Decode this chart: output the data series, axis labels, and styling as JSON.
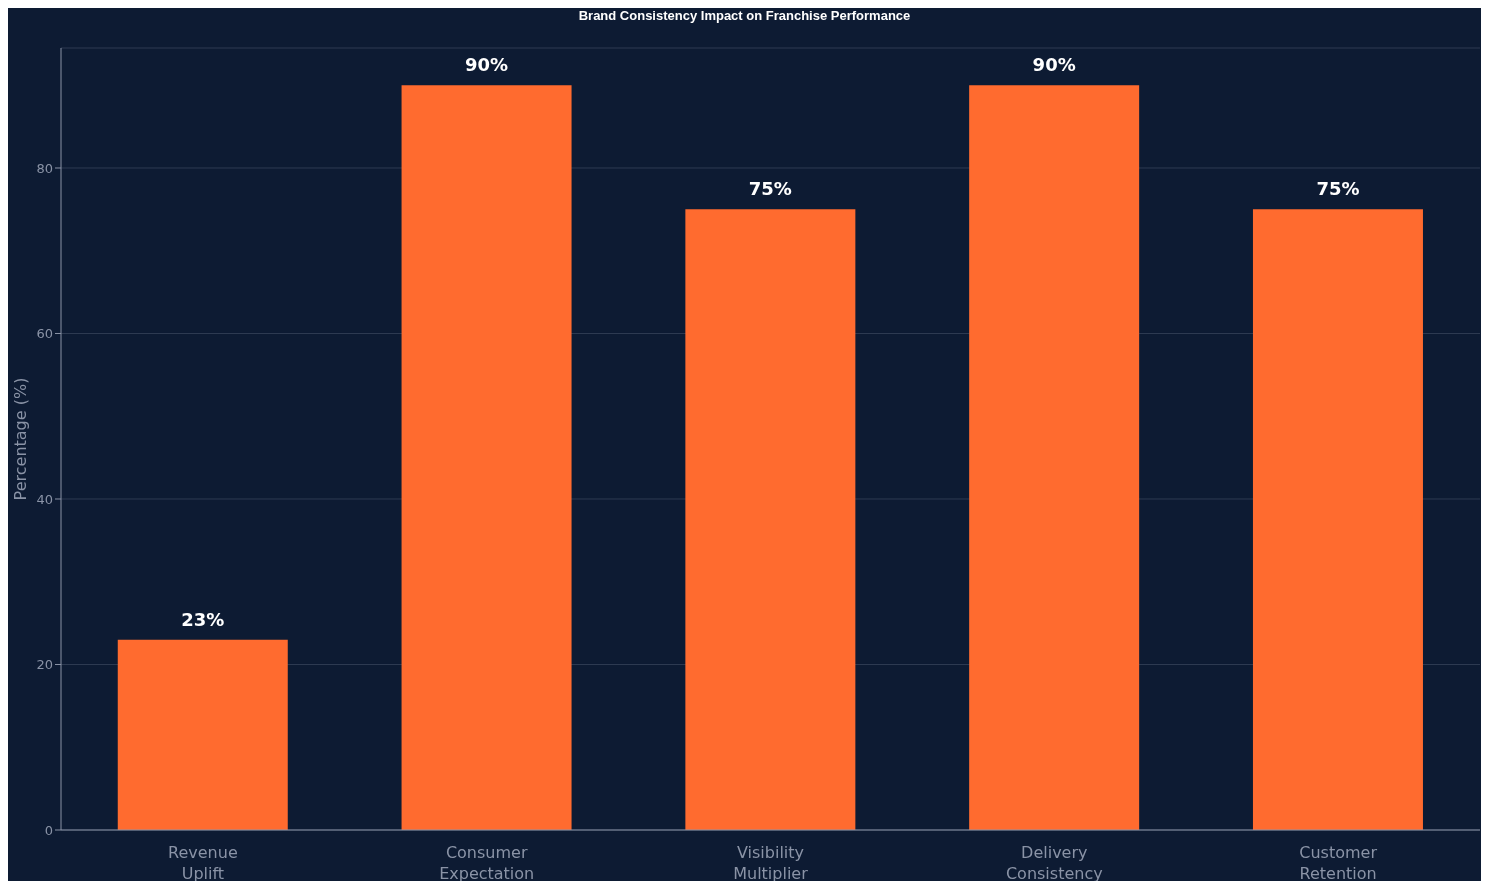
{
  "chart_data": {
    "type": "bar",
    "title": "Brand Consistency Impact on Franchise Performance",
    "ylabel": "Percentage (%)",
    "categories": [
      "Revenue Uplift",
      "Consumer Expectation",
      "Visibility Multiplier",
      "Delivery Consistency",
      "Customer Retention"
    ],
    "values": [
      23,
      90,
      75,
      90,
      75
    ],
    "value_labels": [
      "23%",
      "90%",
      "75%",
      "90%",
      "75%"
    ],
    "color": "#ff6b2f",
    "ylim": [
      0,
      94.5
    ],
    "yticks": [
      0,
      20,
      40,
      60,
      80
    ],
    "grid": "y",
    "legend": false
  }
}
